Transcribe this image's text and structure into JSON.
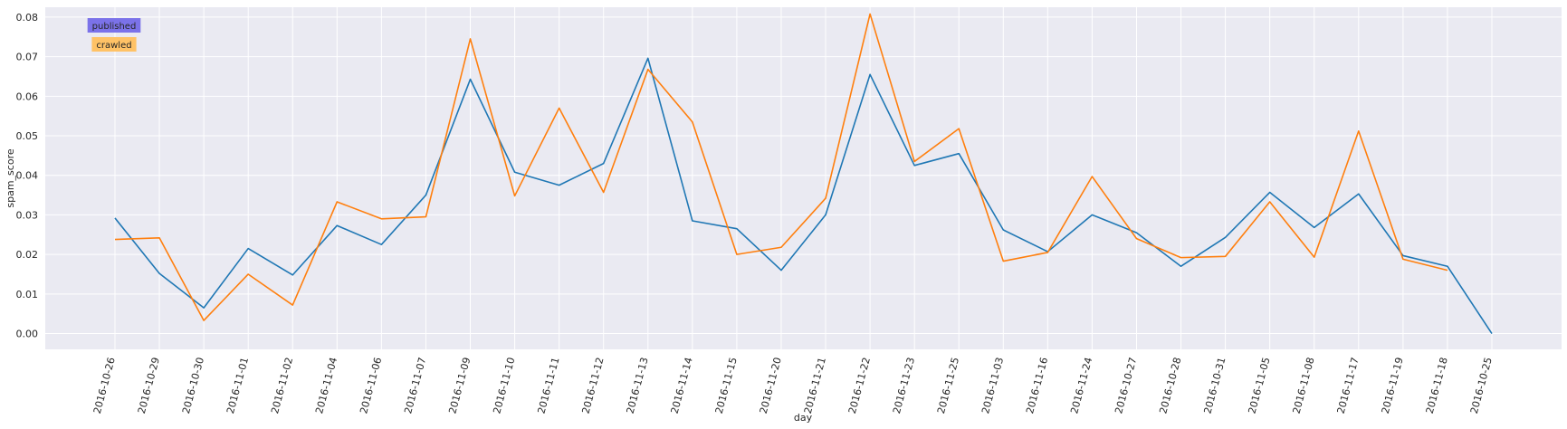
{
  "chart_data": {
    "type": "line",
    "xlabel": "day",
    "ylabel": "spam_score",
    "ylim": [
      -0.004,
      0.0825
    ],
    "yticks": [
      0.0,
      0.01,
      0.02,
      0.03,
      0.04,
      0.05,
      0.06,
      0.07,
      0.08
    ],
    "ytick_labels": [
      "0.00",
      "0.01",
      "0.02",
      "0.03",
      "0.04",
      "0.05",
      "0.06",
      "0.07",
      "0.08"
    ],
    "grid": true,
    "legend_position": "top-left",
    "categories": [
      "2016-10-26",
      "2016-10-29",
      "2016-10-30",
      "2016-11-01",
      "2016-11-02",
      "2016-11-04",
      "2016-11-06",
      "2016-11-07",
      "2016-11-09",
      "2016-11-10",
      "2016-11-11",
      "2016-11-12",
      "2016-11-13",
      "2016-11-14",
      "2016-11-15",
      "2016-11-20",
      "2016-11-21",
      "2016-11-22",
      "2016-11-23",
      "2016-11-25",
      "2016-11-03",
      "2016-11-16",
      "2016-11-24",
      "2016-10-27",
      "2016-10-28",
      "2016-10-31",
      "2016-11-05",
      "2016-11-08",
      "2016-11-17",
      "2016-11-19",
      "2016-11-18",
      "2016-10-25"
    ],
    "series": [
      {
        "name": "published",
        "color": "#1f77b4",
        "legend_bg": "#7b72e9",
        "values": [
          0.0292,
          0.0152,
          0.0065,
          0.0215,
          0.0148,
          0.0273,
          0.0225,
          0.035,
          0.0643,
          0.0408,
          0.0375,
          0.043,
          0.0696,
          0.0285,
          0.0265,
          0.016,
          0.03,
          0.0655,
          0.0425,
          0.0455,
          0.0262,
          0.0207,
          0.03,
          0.0255,
          0.017,
          0.0243,
          0.0357,
          0.0268,
          0.0353,
          0.0197,
          0.017,
          0.0
        ]
      },
      {
        "name": "crawled",
        "color": "#ff7f0e",
        "legend_bg": "#ffc266",
        "values": [
          0.0238,
          0.0242,
          0.0033,
          0.015,
          0.0072,
          0.0333,
          0.029,
          0.0295,
          0.0745,
          0.0348,
          0.057,
          0.0357,
          0.0668,
          0.0535,
          0.02,
          0.0218,
          0.0342,
          0.0808,
          0.0435,
          0.0518,
          0.0183,
          0.0205,
          0.0397,
          0.024,
          0.0192,
          0.0195,
          0.0333,
          0.0193,
          0.0512,
          0.0188,
          0.016,
          null
        ]
      }
    ]
  }
}
